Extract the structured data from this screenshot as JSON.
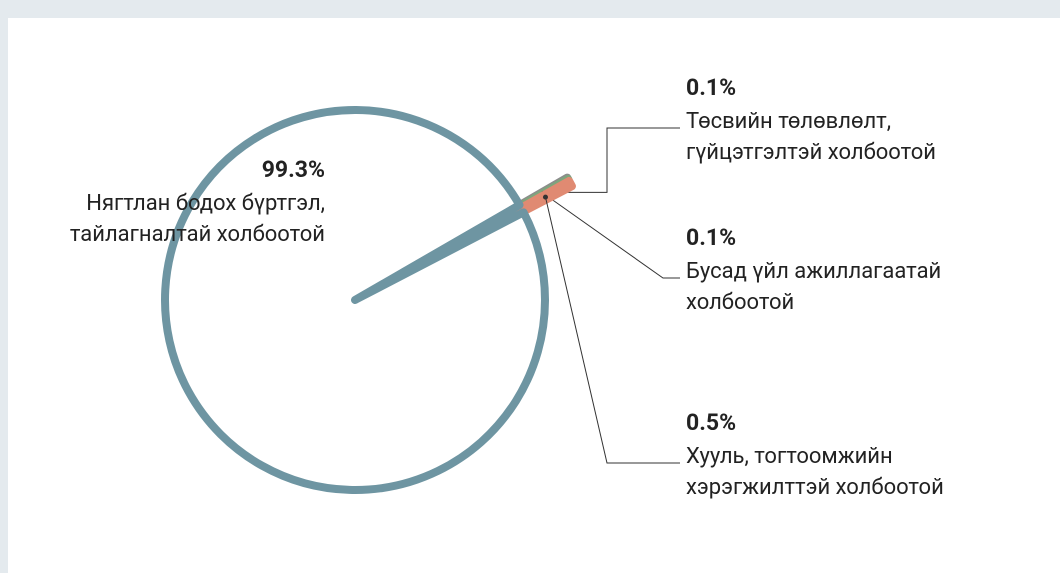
{
  "chart_data": {
    "type": "pie",
    "categories": [
      [
        "Нягтлан бодох бүртгэл,",
        "тайлагналтай холбоотой"
      ],
      [
        "Төсвийн төлөвлөлт,",
        "гүйцэтгэлтэй холбоотой"
      ],
      [
        "Бусад үйл ажиллагаатай",
        "холбоотой"
      ],
      [
        "Хууль, тогтоомжийн",
        "хэрэгжилттэй холбоотой"
      ]
    ],
    "values": [
      99.3,
      0.1,
      0.1,
      0.5
    ],
    "value_labels": [
      "99.3%",
      "0.1%",
      "0.1%",
      "0.5%"
    ],
    "colors": [
      "#6e95a2",
      "#8c8c8c",
      "#7ea57c",
      "#e08a72"
    ]
  }
}
